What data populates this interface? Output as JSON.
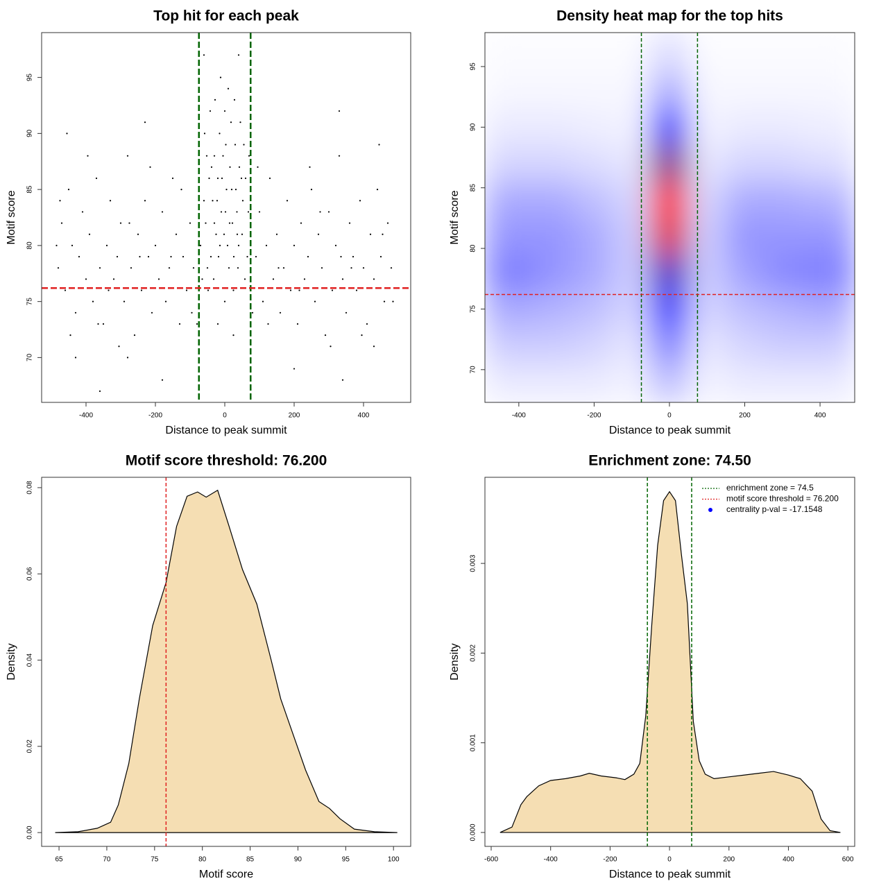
{
  "chart_data": [
    {
      "type": "scatter",
      "title": "Top hit for each peak",
      "x_label": "Distance to peak summit",
      "y_label": "Motif score",
      "color": "#000000",
      "x": [
        -60,
        -45,
        -30,
        -15,
        0,
        10,
        20,
        35,
        50,
        65,
        -70,
        -55,
        -40,
        -25,
        -10,
        5,
        15,
        30,
        45,
        60,
        -65,
        -50,
        -35,
        -20,
        -5,
        8,
        22,
        38,
        52,
        70,
        -58,
        -42,
        -28,
        -12,
        3,
        18,
        28,
        42,
        55,
        68,
        -48,
        -32,
        -18,
        -2,
        12,
        25,
        40,
        58,
        -8,
        2,
        -22,
        32,
        -38,
        48,
        -52,
        14,
        -14,
        26,
        -30,
        36,
        -480,
        -470,
        -460,
        -450,
        -440,
        -430,
        -420,
        -410,
        -400,
        -390,
        -380,
        -370,
        -360,
        -350,
        -340,
        -330,
        -320,
        -310,
        -300,
        -290,
        -280,
        -270,
        -260,
        -250,
        -240,
        -230,
        -220,
        -210,
        -200,
        -190,
        -180,
        -170,
        -160,
        -150,
        -140,
        -130,
        -120,
        -110,
        -100,
        -90,
        90,
        100,
        110,
        120,
        130,
        140,
        150,
        160,
        170,
        180,
        190,
        200,
        210,
        220,
        230,
        240,
        250,
        260,
        270,
        280,
        290,
        300,
        310,
        320,
        330,
        340,
        350,
        360,
        370,
        380,
        390,
        400,
        410,
        420,
        430,
        440,
        450,
        460,
        470,
        480,
        -475,
        -445,
        -395,
        -335,
        -275,
        -215,
        -155,
        -95,
        95,
        155,
        215,
        275,
        335,
        395,
        455,
        485,
        -485,
        -365,
        -245,
        -125,
        125,
        245,
        365,
        -305,
        305,
        -455,
        445,
        -230,
        330,
        -60,
        40,
        0,
        -20,
        25,
        -80,
        80,
        -360,
        -180,
        200,
        340,
        -430,
        -280,
        430
      ],
      "values": [
        84,
        86,
        88,
        90,
        92,
        94,
        85,
        83,
        81,
        79,
        80,
        82,
        79,
        81,
        83,
        85,
        87,
        89,
        91,
        86,
        77,
        78,
        84,
        86,
        88,
        80,
        82,
        78,
        84,
        88,
        90,
        92,
        93,
        95,
        89,
        91,
        93,
        87,
        89,
        83,
        76,
        77,
        79,
        81,
        78,
        76,
        80,
        77,
        86,
        83,
        84,
        85,
        87,
        86,
        88,
        82,
        80,
        79,
        82,
        81,
        78,
        82,
        76,
        85,
        80,
        74,
        79,
        83,
        77,
        81,
        75,
        86,
        78,
        73,
        80,
        84,
        77,
        79,
        82,
        75,
        88,
        78,
        72,
        81,
        76,
        84,
        79,
        74,
        80,
        77,
        83,
        75,
        78,
        86,
        81,
        73,
        79,
        76,
        82,
        78,
        79,
        83,
        75,
        80,
        86,
        77,
        81,
        74,
        78,
        84,
        76,
        80,
        73,
        82,
        77,
        79,
        85,
        75,
        81,
        78,
        72,
        83,
        76,
        80,
        88,
        77,
        74,
        82,
        79,
        76,
        84,
        78,
        73,
        81,
        77,
        85,
        79,
        75,
        82,
        78,
        84,
        72,
        88,
        76,
        82,
        87,
        79,
        74,
        87,
        78,
        76,
        83,
        79,
        72,
        81,
        75,
        80,
        73,
        79,
        85,
        73,
        87,
        78,
        71,
        71,
        90,
        89,
        91,
        92,
        97,
        97,
        75,
        73,
        72,
        73,
        74,
        67,
        68,
        69,
        68,
        70,
        70,
        71
      ],
      "xlim": [
        -528,
        536
      ],
      "xticks": [
        -400,
        -200,
        0,
        200,
        400
      ],
      "ylim": [
        66.0,
        99.0
      ],
      "yticks": [
        70,
        75,
        80,
        85,
        90,
        95
      ],
      "vlines": [
        -74.5,
        74.5
      ],
      "vline_color": "#006400",
      "hline": 76.2,
      "hline_color": "#e02020"
    },
    {
      "type": "heatmap",
      "title": "Density heat map for the top hits",
      "x_label": "Distance to peak summit",
      "y_label": "Motif score",
      "x": [
        -400,
        -300,
        -200,
        -100,
        0,
        100,
        200,
        300,
        400
      ],
      "y": [
        69,
        72,
        75,
        78,
        81,
        84,
        87,
        90,
        93,
        96
      ],
      "z": [
        [
          0.05,
          0.05,
          0.05,
          0.03,
          0.15,
          0.03,
          0.05,
          0.05,
          0.05
        ],
        [
          0.12,
          0.12,
          0.1,
          0.06,
          0.3,
          0.06,
          0.1,
          0.12,
          0.12
        ],
        [
          0.2,
          0.18,
          0.15,
          0.1,
          0.5,
          0.1,
          0.15,
          0.18,
          0.2
        ],
        [
          0.3,
          0.25,
          0.2,
          0.12,
          0.7,
          0.12,
          0.22,
          0.28,
          0.3
        ],
        [
          0.25,
          0.25,
          0.2,
          0.12,
          0.95,
          0.12,
          0.25,
          0.25,
          0.25
        ],
        [
          0.2,
          0.2,
          0.15,
          0.1,
          1.0,
          0.1,
          0.2,
          0.2,
          0.18
        ],
        [
          0.1,
          0.1,
          0.08,
          0.06,
          0.8,
          0.06,
          0.1,
          0.1,
          0.08
        ],
        [
          0.05,
          0.05,
          0.04,
          0.03,
          0.5,
          0.03,
          0.05,
          0.05,
          0.04
        ],
        [
          0.02,
          0.02,
          0.02,
          0.02,
          0.2,
          0.02,
          0.02,
          0.02,
          0.02
        ],
        [
          0.01,
          0.01,
          0.01,
          0.01,
          0.08,
          0.01,
          0.01,
          0.01,
          0.01
        ]
      ],
      "colors": [
        "#ffffff",
        "#0000ff",
        "#ff0000"
      ],
      "xlim": [
        -490,
        492
      ],
      "xticks": [
        -400,
        -200,
        0,
        200,
        400
      ],
      "ylim": [
        67.3,
        97.8
      ],
      "yticks": [
        70,
        75,
        80,
        85,
        90,
        95
      ],
      "vlines": [
        -74.5,
        74.5
      ],
      "vline_color": "#006400",
      "hline": 76.2,
      "hline_color": "#e02020"
    },
    {
      "type": "density",
      "title": "Motif score threshold: 76.200",
      "x_label": "Motif score",
      "y_label": "Density",
      "color": "#f5deb3",
      "x": [
        64.6,
        67,
        69,
        70.4,
        71.2,
        72.3,
        73.4,
        74.8,
        76.2,
        77.3,
        78.4,
        79.5,
        80.4,
        81.6,
        82.8,
        84.2,
        85.7,
        87.2,
        88.2,
        89.3,
        90.8,
        92.2,
        93.3,
        94.4,
        95.9,
        98,
        100.4
      ],
      "values": [
        0,
        0.0002,
        0.001,
        0.0024,
        0.0064,
        0.016,
        0.031,
        0.048,
        0.058,
        0.071,
        0.078,
        0.079,
        0.0778,
        0.0794,
        0.071,
        0.061,
        0.053,
        0.04,
        0.031,
        0.024,
        0.0145,
        0.0072,
        0.0056,
        0.0032,
        0.0008,
        0.0002,
        0
      ],
      "xlim": [
        63.18,
        101.8
      ],
      "xticks": [
        65,
        70,
        75,
        80,
        85,
        90,
        95,
        100
      ],
      "ylim": [
        -0.0032,
        0.0824
      ],
      "yticks": [
        {
          "value": 0,
          "label": "0.00"
        },
        0.02,
        0.04,
        0.06,
        0.08
      ],
      "vlines": [
        76.2
      ],
      "vline_color": "#e02020"
    },
    {
      "type": "density",
      "title": "Enrichment zone: 74.50",
      "x_label": "Distance to peak summit",
      "y_label": "Density",
      "color": "#f5deb3",
      "x": [
        -570,
        -530,
        -500,
        -480,
        -440,
        -400,
        -350,
        -300,
        -270,
        -230,
        -180,
        -150,
        -120,
        -100,
        -80,
        -60,
        -40,
        -20,
        0,
        20,
        40,
        60,
        80,
        100,
        120,
        150,
        200,
        250,
        300,
        350,
        400,
        440,
        480,
        510,
        540,
        575
      ],
      "values": [
        0,
        6e-05,
        0.00031,
        0.0004,
        0.00052,
        0.00058,
        0.0006,
        0.00063,
        0.00066,
        0.00063,
        0.00061,
        0.00059,
        0.00065,
        0.00077,
        0.0013,
        0.0023,
        0.0032,
        0.0037,
        0.0038,
        0.0037,
        0.0031,
        0.00255,
        0.00124,
        0.0008,
        0.00065,
        0.0006,
        0.00062,
        0.00064,
        0.00066,
        0.00068,
        0.00064,
        0.0006,
        0.00046,
        0.00015,
        2e-05,
        0
      ],
      "xlim": [
        -621,
        623
      ],
      "xticks": [
        -600,
        -400,
        -200,
        0,
        200,
        400,
        600
      ],
      "ylim": [
        -0.000155,
        0.00396
      ],
      "yticks": [
        {
          "value": 0,
          "label": "0.000"
        },
        0.001,
        0.002,
        0.003
      ],
      "vlines": [
        -74.5,
        74.5
      ],
      "vline_color": "#006400",
      "legend": {
        "position": "topright",
        "entries": [
          {
            "label": "enrichment zone = 74.5",
            "color": "#006400",
            "style": "dotted"
          },
          {
            "label": "motif score threshold = 76.200",
            "color": "#e02020",
            "style": "dotted"
          },
          {
            "label": "centrality p-val = -17.1548",
            "color": "#0000ff",
            "style": "point"
          }
        ]
      }
    }
  ]
}
